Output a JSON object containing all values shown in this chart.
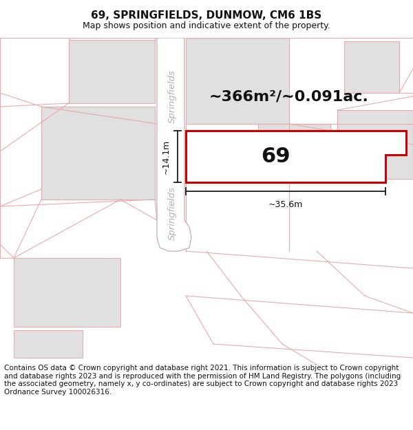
{
  "title": "69, SPRINGFIELDS, DUNMOW, CM6 1BS",
  "subtitle": "Map shows position and indicative extent of the property.",
  "area_text": "~366m²/~0.091ac.",
  "label_number": "69",
  "width_label": "~35.6m",
  "height_label": "~14.1m",
  "street_label": "Springfields",
  "footer_text": "Contains OS data © Crown copyright and database right 2021. This information is subject to Crown copyright and database rights 2023 and is reproduced with the permission of HM Land Registry. The polygons (including the associated geometry, namely x, y co-ordinates) are subject to Crown copyright and database rights 2023 Ordnance Survey 100026316.",
  "bg_color": "#ffffff",
  "plot_fill": "#ffffff",
  "plot_edge": "#cc0000",
  "block_fill": "#e0e0e0",
  "block_edge": "#e8aaaa",
  "road_fill": "#ffffff",
  "road_edge": "#c8a0a0",
  "dim_color": "#1a1a1a",
  "street_color": "#aaaaaa",
  "title_fontsize": 11,
  "subtitle_fontsize": 9,
  "area_fontsize": 16,
  "number_fontsize": 22,
  "footer_fontsize": 7.5
}
